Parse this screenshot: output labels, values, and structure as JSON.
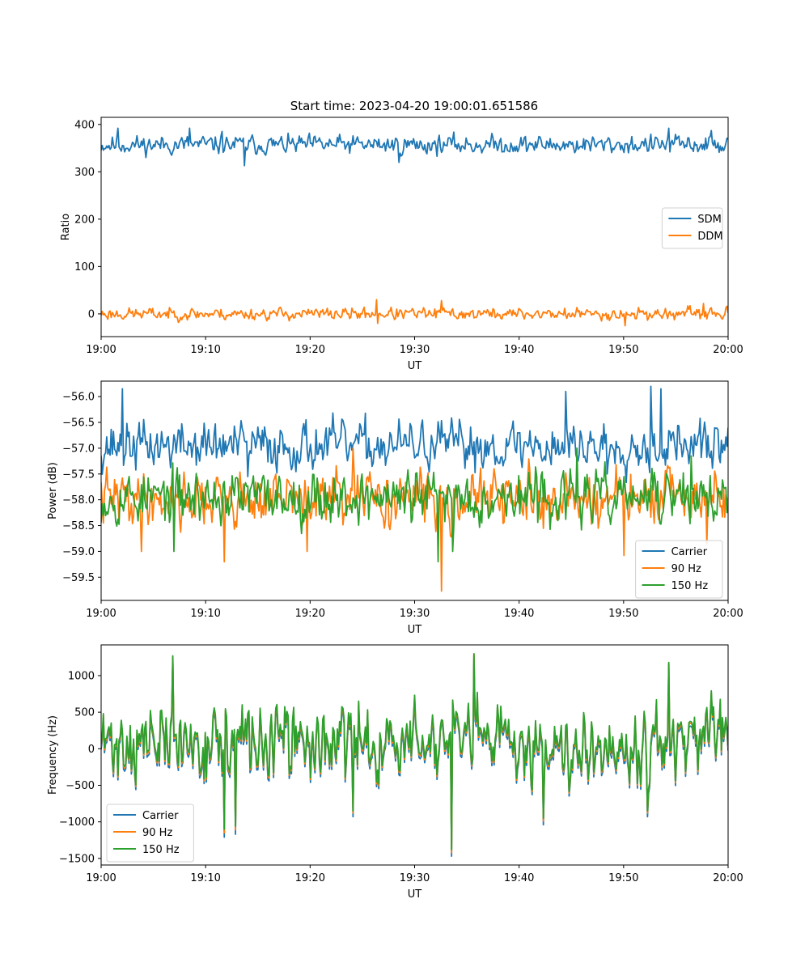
{
  "figure": {
    "title": "Start time: 2023-04-20 19:00:01.651586"
  },
  "chart_data": [
    {
      "type": "line",
      "title": "Start time: 2023-04-20 19:00:01.651586",
      "xlabel": "UT",
      "ylabel": "Ratio",
      "x_ticks": [
        "19:00",
        "19:10",
        "19:20",
        "19:30",
        "19:40",
        "19:50",
        "20:00"
      ],
      "xlim_minutes": [
        0,
        60
      ],
      "ylim": [
        -48,
        415
      ],
      "y_ticks": [
        0,
        100,
        200,
        300,
        400
      ],
      "legend_position": "center-right",
      "grid": false,
      "series": [
        {
          "name": "SDM",
          "color": "#1f77b4",
          "center": 357,
          "amplitude": 14,
          "seed": 11,
          "peaks": [
            [
              1.6,
              392
            ],
            [
              8.5,
              392
            ],
            [
              11.6,
              385
            ],
            [
              13.7,
              313
            ],
            [
              28.5,
              320
            ],
            [
              54.3,
              392
            ],
            [
              58.4,
              387
            ]
          ]
        },
        {
          "name": "DDM",
          "color": "#ff7f0e",
          "center": 0,
          "amplitude": 9,
          "seed": 23,
          "peaks": [
            [
              26.4,
              30
            ],
            [
              32.6,
              28
            ],
            [
              26.5,
              -20
            ],
            [
              50.1,
              -25
            ],
            [
              57.6,
              22
            ]
          ]
        }
      ]
    },
    {
      "type": "line",
      "xlabel": "UT",
      "ylabel": "Power (dB)",
      "x_ticks": [
        "19:00",
        "19:10",
        "19:20",
        "19:30",
        "19:40",
        "19:50",
        "20:00"
      ],
      "xlim_minutes": [
        0,
        60
      ],
      "ylim": [
        -59.95,
        -55.7
      ],
      "y_ticks": [
        -59.5,
        -59.0,
        -58.5,
        -58.0,
        -57.5,
        -57.0,
        -56.5,
        -56.0
      ],
      "y_tick_labels": [
        "−59.5",
        "−59.0",
        "−58.5",
        "−58.0",
        "−57.5",
        "−57.0",
        "−56.5",
        "−56.0"
      ],
      "legend_position": "lower-right",
      "grid": false,
      "series": [
        {
          "name": "Carrier",
          "color": "#1f77b4",
          "center": -56.95,
          "amplitude": 0.33,
          "seed": 37,
          "peaks": [
            [
              2.0,
              -55.85
            ],
            [
              44.5,
              -55.9
            ],
            [
              52.6,
              -55.8
            ],
            [
              53.6,
              -55.85
            ],
            [
              14.0,
              -57.55
            ],
            [
              48.4,
              -57.5
            ]
          ]
        },
        {
          "name": "90 Hz",
          "color": "#ff7f0e",
          "center": -57.98,
          "amplitude": 0.38,
          "seed": 41,
          "peaks": [
            [
              32.6,
              -59.77
            ],
            [
              11.8,
              -59.2
            ],
            [
              3.9,
              -59.0
            ],
            [
              19.7,
              -59.0
            ],
            [
              50.0,
              -59.08
            ],
            [
              58.0,
              -58.85
            ],
            [
              24.1,
              -57.0
            ]
          ]
        },
        {
          "name": "150 Hz",
          "color": "#2ca02c",
          "center": -57.95,
          "amplitude": 0.36,
          "seed": 53,
          "peaks": [
            [
              32.3,
              -59.2
            ],
            [
              33.6,
              -59.0
            ],
            [
              45.5,
              -57.0
            ],
            [
              7.0,
              -59.0
            ],
            [
              56.5,
              -57.15
            ]
          ]
        }
      ]
    },
    {
      "type": "line",
      "xlabel": "UT",
      "ylabel": "Frequency (Hz)",
      "x_ticks": [
        "19:00",
        "19:10",
        "19:20",
        "19:30",
        "19:40",
        "19:50",
        "20:00"
      ],
      "xlim_minutes": [
        0,
        60
      ],
      "ylim": [
        -1590,
        1420
      ],
      "y_ticks": [
        -1500,
        -1000,
        -500,
        0,
        500,
        1000
      ],
      "y_tick_labels": [
        "−1500",
        "−1000",
        "−500",
        "0",
        "500",
        "1000"
      ],
      "legend_position": "lower-left",
      "grid": false,
      "series": [
        {
          "name": "Carrier",
          "color": "#1f77b4",
          "center": 30,
          "amplitude": 360,
          "seed": 71,
          "peaks": [
            [
              33.5,
              -1470
            ],
            [
              11.8,
              -1210
            ],
            [
              12.9,
              -1170
            ],
            [
              6.9,
              1240
            ],
            [
              35.7,
              1270
            ],
            [
              54.3,
              1150
            ],
            [
              42.3,
              -1040
            ],
            [
              24.1,
              -930
            ],
            [
              52.3,
              -930
            ]
          ]
        },
        {
          "name": "90 Hz",
          "color": "#ff7f0e",
          "center": 70,
          "amplitude": 360,
          "seed": 71,
          "peaks": [
            [
              33.5,
              -1420
            ],
            [
              11.8,
              -1150
            ],
            [
              12.9,
              -1110
            ],
            [
              6.9,
              1260
            ],
            [
              35.7,
              1290
            ],
            [
              54.3,
              1170
            ],
            [
              42.3,
              -990
            ],
            [
              24.1,
              -880
            ],
            [
              52.3,
              -880
            ]
          ]
        },
        {
          "name": "150 Hz",
          "color": "#2ca02c",
          "center": 95,
          "amplitude": 360,
          "seed": 71,
          "peaks": [
            [
              33.5,
              -1380
            ],
            [
              11.8,
              -1100
            ],
            [
              12.9,
              -1060
            ],
            [
              6.9,
              1270
            ],
            [
              35.7,
              1300
            ],
            [
              54.3,
              1180
            ],
            [
              42.3,
              -950
            ],
            [
              24.1,
              -850
            ],
            [
              52.3,
              -850
            ]
          ]
        }
      ]
    }
  ]
}
